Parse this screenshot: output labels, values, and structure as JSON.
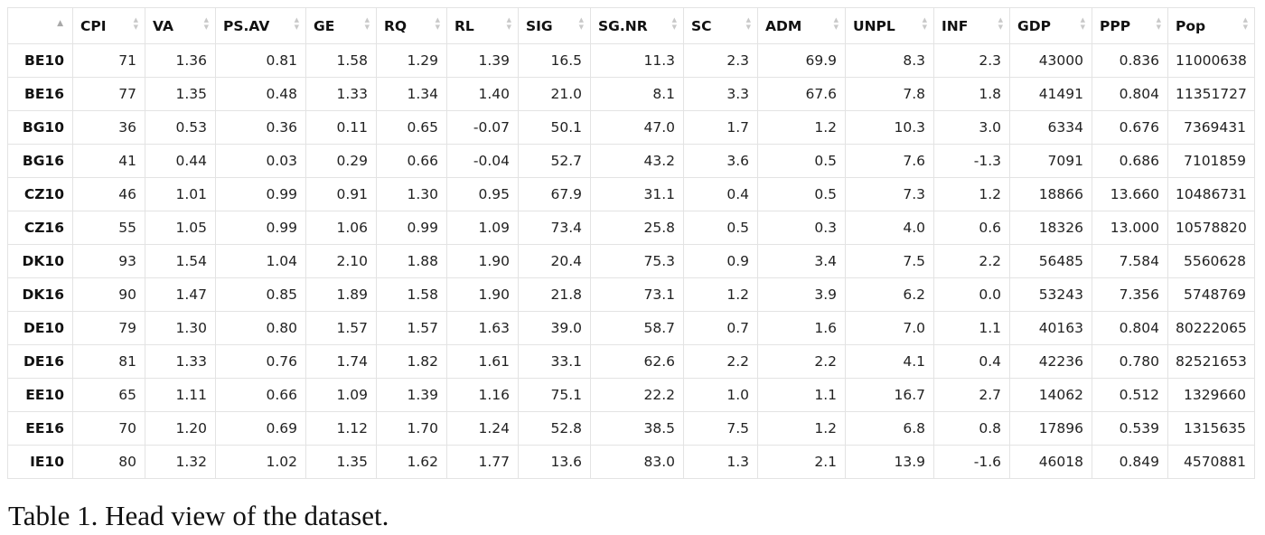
{
  "table": {
    "sort_icon": "sort-arrows-icon",
    "corner_sort_icon": "sort-up-icon",
    "columns": [
      "CPI",
      "VA",
      "PS.AV",
      "GE",
      "RQ",
      "RL",
      "SIG",
      "SG.NR",
      "SC",
      "ADM",
      "UNPL",
      "INF",
      "GDP",
      "PPP",
      "Pop"
    ],
    "rows": [
      {
        "id": "BE10",
        "values": [
          "71",
          "1.36",
          "0.81",
          "1.58",
          "1.29",
          "1.39",
          "16.5",
          "11.3",
          "2.3",
          "69.9",
          "8.3",
          "2.3",
          "43000",
          "0.836",
          "11000638"
        ]
      },
      {
        "id": "BE16",
        "values": [
          "77",
          "1.35",
          "0.48",
          "1.33",
          "1.34",
          "1.40",
          "21.0",
          "8.1",
          "3.3",
          "67.6",
          "7.8",
          "1.8",
          "41491",
          "0.804",
          "11351727"
        ]
      },
      {
        "id": "BG10",
        "values": [
          "36",
          "0.53",
          "0.36",
          "0.11",
          "0.65",
          "-0.07",
          "50.1",
          "47.0",
          "1.7",
          "1.2",
          "10.3",
          "3.0",
          "6334",
          "0.676",
          "7369431"
        ]
      },
      {
        "id": "BG16",
        "values": [
          "41",
          "0.44",
          "0.03",
          "0.29",
          "0.66",
          "-0.04",
          "52.7",
          "43.2",
          "3.6",
          "0.5",
          "7.6",
          "-1.3",
          "7091",
          "0.686",
          "7101859"
        ]
      },
      {
        "id": "CZ10",
        "values": [
          "46",
          "1.01",
          "0.99",
          "0.91",
          "1.30",
          "0.95",
          "67.9",
          "31.1",
          "0.4",
          "0.5",
          "7.3",
          "1.2",
          "18866",
          "13.660",
          "10486731"
        ]
      },
      {
        "id": "CZ16",
        "values": [
          "55",
          "1.05",
          "0.99",
          "1.06",
          "0.99",
          "1.09",
          "73.4",
          "25.8",
          "0.5",
          "0.3",
          "4.0",
          "0.6",
          "18326",
          "13.000",
          "10578820"
        ]
      },
      {
        "id": "DK10",
        "values": [
          "93",
          "1.54",
          "1.04",
          "2.10",
          "1.88",
          "1.90",
          "20.4",
          "75.3",
          "0.9",
          "3.4",
          "7.5",
          "2.2",
          "56485",
          "7.584",
          "5560628"
        ]
      },
      {
        "id": "DK16",
        "values": [
          "90",
          "1.47",
          "0.85",
          "1.89",
          "1.58",
          "1.90",
          "21.8",
          "73.1",
          "1.2",
          "3.9",
          "6.2",
          "0.0",
          "53243",
          "7.356",
          "5748769"
        ]
      },
      {
        "id": "DE10",
        "values": [
          "79",
          "1.30",
          "0.80",
          "1.57",
          "1.57",
          "1.63",
          "39.0",
          "58.7",
          "0.7",
          "1.6",
          "7.0",
          "1.1",
          "40163",
          "0.804",
          "80222065"
        ]
      },
      {
        "id": "DE16",
        "values": [
          "81",
          "1.33",
          "0.76",
          "1.74",
          "1.82",
          "1.61",
          "33.1",
          "62.6",
          "2.2",
          "2.2",
          "4.1",
          "0.4",
          "42236",
          "0.780",
          "82521653"
        ]
      },
      {
        "id": "EE10",
        "values": [
          "65",
          "1.11",
          "0.66",
          "1.09",
          "1.39",
          "1.16",
          "75.1",
          "22.2",
          "1.0",
          "1.1",
          "16.7",
          "2.7",
          "14062",
          "0.512",
          "1329660"
        ]
      },
      {
        "id": "EE16",
        "values": [
          "70",
          "1.20",
          "0.69",
          "1.12",
          "1.70",
          "1.24",
          "52.8",
          "38.5",
          "7.5",
          "1.2",
          "6.8",
          "0.8",
          "17896",
          "0.539",
          "1315635"
        ]
      },
      {
        "id": "IE10",
        "values": [
          "80",
          "1.32",
          "1.02",
          "1.35",
          "1.62",
          "1.77",
          "13.6",
          "83.0",
          "1.3",
          "2.1",
          "13.9",
          "-1.6",
          "46018",
          "0.849",
          "4570881"
        ]
      }
    ]
  },
  "caption": "Table 1. Head view of the dataset."
}
